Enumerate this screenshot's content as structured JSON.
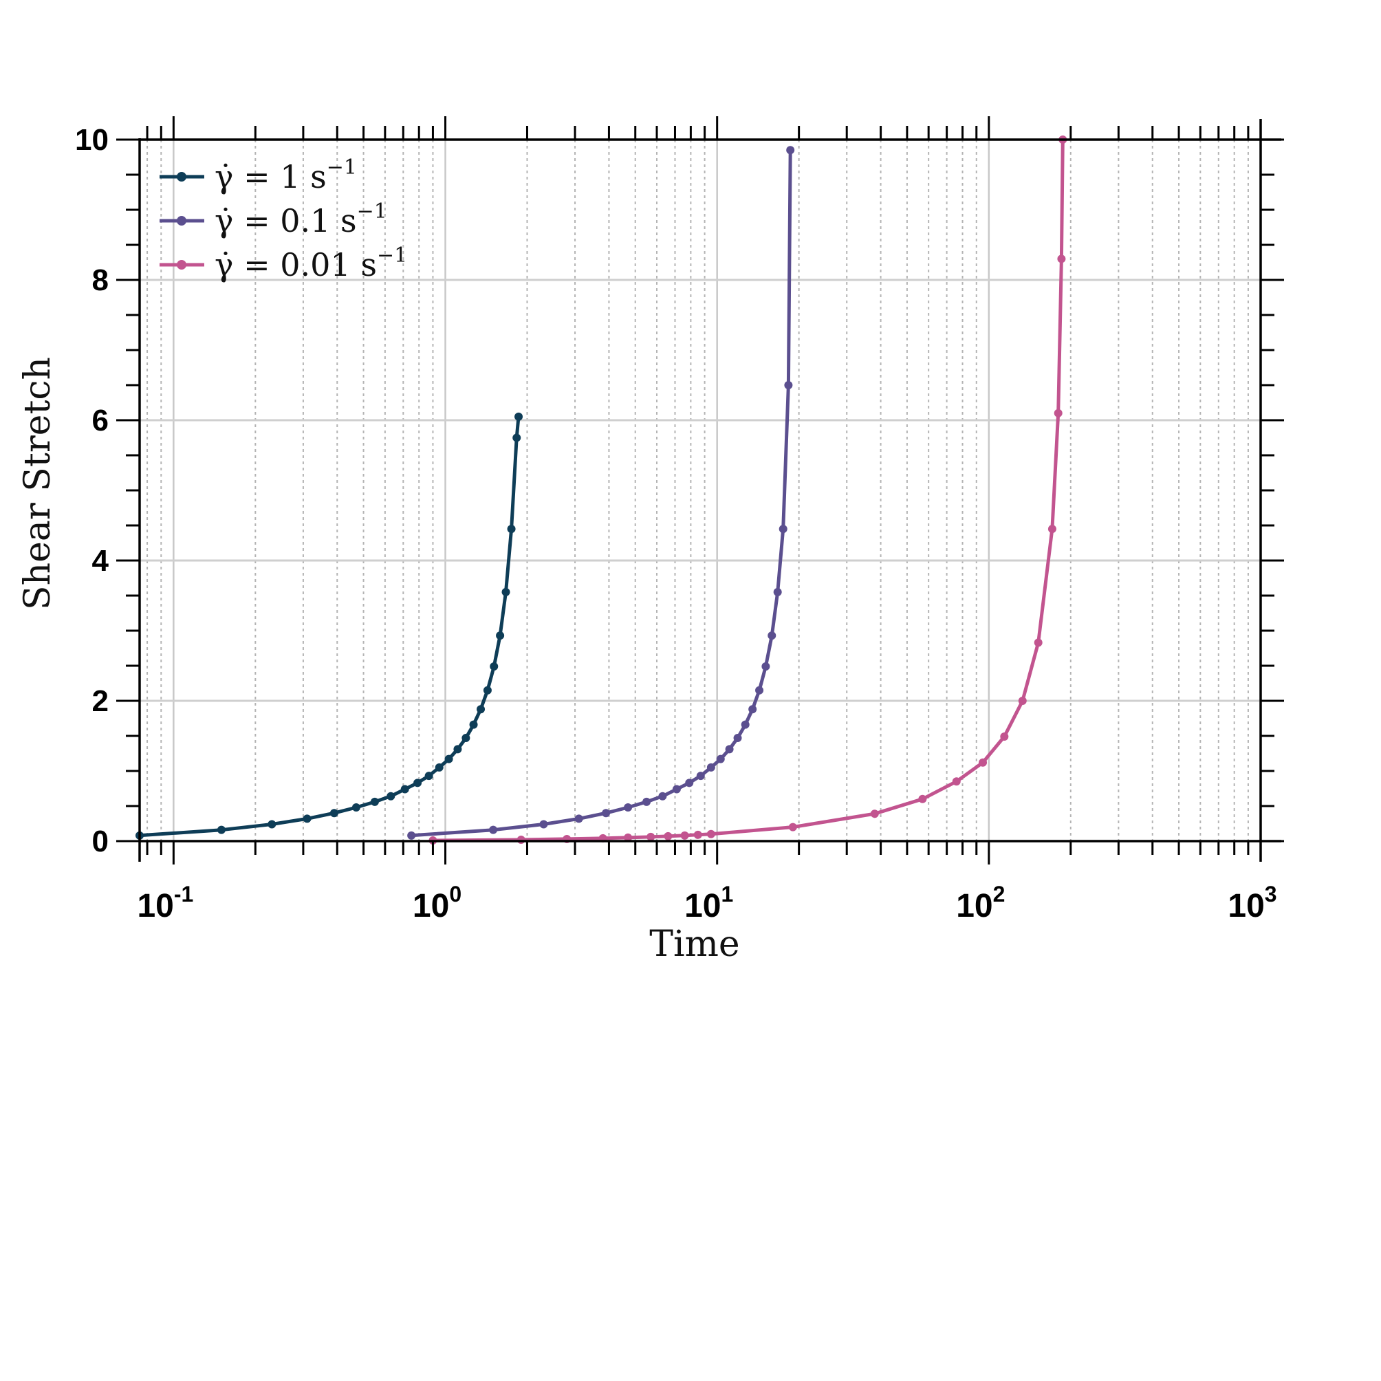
{
  "chart_data": {
    "type": "line",
    "xscale": "log",
    "xlim": [
      0.075,
      1000
    ],
    "ylim": [
      0,
      10
    ],
    "xlabel": "Time",
    "ylabel": "Shear Stretch",
    "grid": true,
    "legend_position": "top-left",
    "x_ticks": [
      0.1,
      1,
      10,
      100,
      1000
    ],
    "x_tick_labels": [
      {
        "base": "10",
        "exp": "-1"
      },
      {
        "base": "10",
        "exp": "0"
      },
      {
        "base": "10",
        "exp": "1"
      },
      {
        "base": "10",
        "exp": "2"
      },
      {
        "base": "10",
        "exp": "3"
      }
    ],
    "y_ticks": [
      0,
      2,
      4,
      6,
      8,
      10
    ],
    "y_tick_labels": [
      "0",
      "2",
      "4",
      "6",
      "8",
      "10"
    ],
    "series": [
      {
        "name": "γ̇ = 1 s⁻¹",
        "legend": {
          "prefix": "γ̇ = 1 s",
          "sup": "−1"
        },
        "color": "#0e3d57",
        "rate": 1,
        "t_end": 1.86,
        "x": [
          0.075,
          0.15,
          0.23,
          0.31,
          0.39,
          0.47,
          0.55,
          0.63,
          0.71,
          0.79,
          0.87,
          0.95,
          1.03,
          1.11,
          1.19,
          1.27,
          1.35,
          1.43,
          1.51,
          1.59,
          1.67,
          1.75,
          1.83,
          1.86
        ],
        "y": [
          0.08,
          0.16,
          0.24,
          0.32,
          0.4,
          0.48,
          0.56,
          0.64,
          0.74,
          0.83,
          0.93,
          1.05,
          1.17,
          1.31,
          1.47,
          1.66,
          1.88,
          2.15,
          2.49,
          2.93,
          3.55,
          4.45,
          5.75,
          6.05
        ]
      },
      {
        "name": "γ̇ = 0.1 s⁻¹",
        "legend": {
          "prefix": "γ̇ = 0.1 s",
          "sup": "−1"
        },
        "color": "#5b4f8f",
        "rate": 0.1,
        "t_end": 18.6,
        "x": [
          0.75,
          1.5,
          2.3,
          3.1,
          3.9,
          4.7,
          5.5,
          6.3,
          7.1,
          7.9,
          8.7,
          9.5,
          10.3,
          11.1,
          11.9,
          12.7,
          13.5,
          14.3,
          15.1,
          15.9,
          16.7,
          17.5,
          18.3,
          18.6
        ],
        "y": [
          0.08,
          0.16,
          0.24,
          0.32,
          0.4,
          0.48,
          0.56,
          0.64,
          0.74,
          0.83,
          0.93,
          1.05,
          1.17,
          1.31,
          1.47,
          1.66,
          1.88,
          2.15,
          2.49,
          2.93,
          3.55,
          4.45,
          6.5,
          9.85
        ]
      },
      {
        "name": "γ̇ = 0.01 s⁻¹",
        "legend": {
          "prefix": "γ̇ = 0.01 s",
          "sup": "−1"
        },
        "color": "#c2548f",
        "rate": 0.01,
        "t_end": 187,
        "x": [
          0.9,
          1.9,
          2.8,
          3.8,
          4.7,
          5.7,
          6.6,
          7.6,
          8.5,
          9.5,
          19,
          38,
          57,
          76,
          95,
          114,
          133,
          152,
          171,
          180,
          185,
          187
        ],
        "y": [
          0.01,
          0.02,
          0.03,
          0.04,
          0.05,
          0.06,
          0.07,
          0.08,
          0.09,
          0.1,
          0.2,
          0.39,
          0.6,
          0.85,
          1.12,
          1.49,
          2.0,
          2.83,
          4.45,
          6.1,
          8.3,
          10.0
        ]
      }
    ]
  }
}
